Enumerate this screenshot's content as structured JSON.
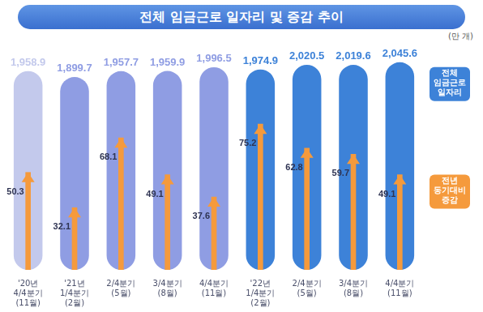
{
  "chart_data": {
    "type": "bar",
    "title": "전체 임금근로 일자리 및 증감 추이",
    "y_axis_label": "(만 개)",
    "categories": [
      "'20년 4/4분기 (11월)",
      "'21년 1/4분기 (2월)",
      "2/4분기 (5월)",
      "3/4분기 (8월)",
      "4/4분기 (11월)",
      "'22년 1/4분기 (2월)",
      "2/4분기 (5월)",
      "3/4분기 (8월)",
      "4/4분기 (11월)"
    ],
    "series": [
      {
        "name": "전체 임금근로 일자리",
        "colors": [
          "#c3c9ec",
          "#8f9de3",
          "#8f9de3",
          "#8f9de3",
          "#8f9de3",
          "#3d82d8",
          "#3d82d8",
          "#3d82d8",
          "#3d82d8"
        ],
        "values": [
          1958.9,
          1899.7,
          1957.7,
          1959.9,
          1996.5,
          1974.9,
          2020.5,
          2019.6,
          2045.6
        ],
        "value_labels": [
          "1,958.9",
          "1,899.7",
          "1,957.7",
          "1,959.9",
          "1,996.5",
          "1,974.9",
          "2,020.5",
          "2,019.6",
          "2,045.6"
        ]
      },
      {
        "name": "전년 동기대비 증감",
        "color": "#f59a3c",
        "axis": "y2",
        "values": [
          50.3,
          32.1,
          68.1,
          49.1,
          37.6,
          75.2,
          62.8,
          59.7,
          49.1
        ]
      }
    ],
    "ylim": [
      0,
      2100
    ],
    "y2lim": [
      0,
      110
    ],
    "grid": false,
    "legend": "right",
    "data_labels": true,
    "tick_labels": "x"
  }
}
